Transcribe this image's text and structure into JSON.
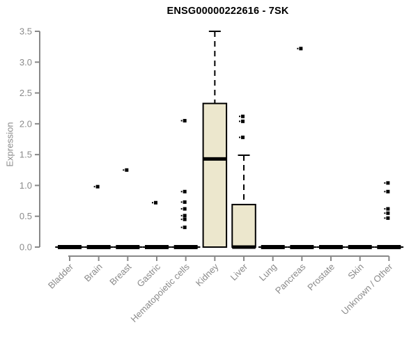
{
  "chart_data": {
    "type": "boxplot",
    "title": "ENSG00000222616 - 7SK",
    "ylabel": "Expression",
    "xlabel": "",
    "ylim": [
      0,
      3.5
    ],
    "yticks": [
      0.0,
      0.5,
      1.0,
      1.5,
      2.0,
      2.5,
      3.0,
      3.5
    ],
    "grid": false,
    "legend": "none",
    "categories": [
      "Bladder",
      "Brain",
      "Breast",
      "Gastric",
      "Hematopoietic cells",
      "Kidney",
      "Liver",
      "Lung",
      "Pancreas",
      "Prostate",
      "Skin",
      "Unknown / Other"
    ],
    "boxes": [
      {
        "category": "Bladder",
        "q1": 0,
        "median": 0,
        "q3": 0,
        "whisker_low": 0,
        "whisker_high": 0,
        "outliers": []
      },
      {
        "category": "Brain",
        "q1": 0,
        "median": 0,
        "q3": 0,
        "whisker_low": 0,
        "whisker_high": 0,
        "outliers": [
          0.98
        ]
      },
      {
        "category": "Breast",
        "q1": 0,
        "median": 0,
        "q3": 0,
        "whisker_low": 0,
        "whisker_high": 0,
        "outliers": [
          1.25
        ]
      },
      {
        "category": "Gastric",
        "q1": 0,
        "median": 0,
        "q3": 0,
        "whisker_low": 0,
        "whisker_high": 0,
        "outliers": [
          0.72
        ]
      },
      {
        "category": "Hematopoietic cells",
        "q1": 0,
        "median": 0,
        "q3": 0,
        "whisker_low": 0,
        "whisker_high": 0,
        "outliers": [
          2.05,
          0.9,
          0.73,
          0.62,
          0.51,
          0.45,
          0.32
        ]
      },
      {
        "category": "Kidney",
        "q1": 0,
        "median": 1.43,
        "q3": 2.33,
        "whisker_low": 0,
        "whisker_high": 3.5,
        "outliers": []
      },
      {
        "category": "Liver",
        "q1": 0,
        "median": 0,
        "q3": 0.69,
        "whisker_low": 0,
        "whisker_high": 1.49,
        "outliers": [
          2.12,
          2.04,
          1.78
        ]
      },
      {
        "category": "Lung",
        "q1": 0,
        "median": 0,
        "q3": 0,
        "whisker_low": 0,
        "whisker_high": 0,
        "outliers": []
      },
      {
        "category": "Pancreas",
        "q1": 0,
        "median": 0,
        "q3": 0,
        "whisker_low": 0,
        "whisker_high": 0,
        "outliers": [
          3.22
        ]
      },
      {
        "category": "Prostate",
        "q1": 0,
        "median": 0,
        "q3": 0,
        "whisker_low": 0,
        "whisker_high": 0,
        "outliers": []
      },
      {
        "category": "Skin",
        "q1": 0,
        "median": 0,
        "q3": 0,
        "whisker_low": 0,
        "whisker_high": 0,
        "outliers": []
      },
      {
        "category": "Unknown / Other",
        "q1": 0,
        "median": 0,
        "q3": 0,
        "whisker_low": 0,
        "whisker_high": 0,
        "outliers": [
          1.04,
          0.9,
          0.62,
          0.55,
          0.47
        ]
      }
    ],
    "colors": {
      "box_fill": "#ECE7CD",
      "box_border": "#000000",
      "median": "#000000",
      "whisker": "#000000",
      "outlier": "#000000",
      "axis": "#888888",
      "tick_label": "#8a8a8a",
      "title": "#000000"
    }
  }
}
